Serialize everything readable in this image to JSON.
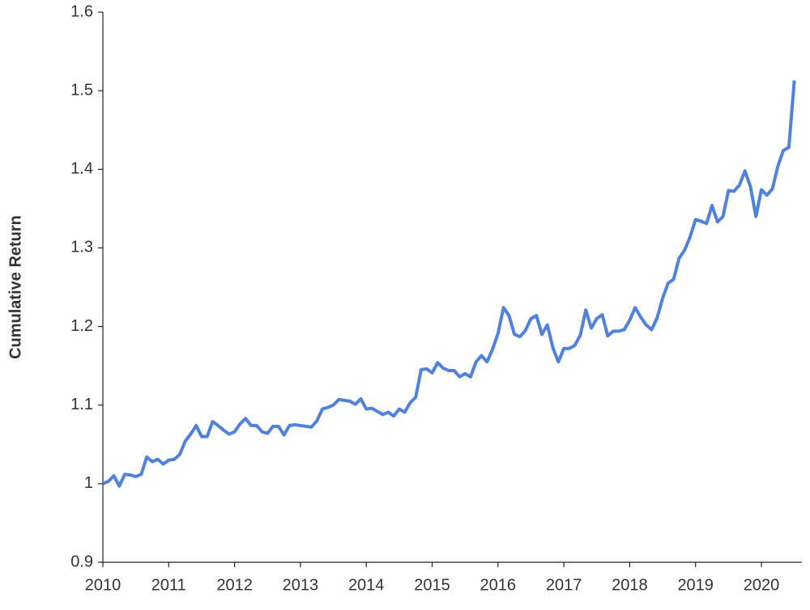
{
  "chart_data": {
    "type": "line",
    "y_label": "Cumulative Return",
    "categories": [
      "2010",
      null,
      null,
      null,
      null,
      null,
      null,
      null,
      null,
      null,
      null,
      null,
      "2011",
      null,
      null,
      null,
      null,
      null,
      null,
      null,
      null,
      null,
      null,
      null,
      "2012",
      null,
      null,
      null,
      null,
      null,
      null,
      null,
      null,
      null,
      null,
      null,
      "2013",
      null,
      null,
      null,
      null,
      null,
      null,
      null,
      null,
      null,
      null,
      null,
      "2014",
      null,
      null,
      null,
      null,
      null,
      null,
      null,
      null,
      null,
      null,
      null,
      "2015",
      null,
      null,
      null,
      null,
      null,
      null,
      null,
      null,
      null,
      null,
      null,
      "2016",
      null,
      null,
      null,
      null,
      null,
      null,
      null,
      null,
      null,
      null,
      null,
      "2017",
      null,
      null,
      null,
      null,
      null,
      null,
      null,
      null,
      null,
      null,
      null,
      "2018",
      null,
      null,
      null,
      null,
      null,
      null,
      null,
      null,
      null,
      null,
      null,
      "2019",
      null,
      null,
      null,
      null,
      null,
      null,
      null,
      null,
      null,
      null,
      null,
      "2020",
      null,
      null,
      null,
      null,
      null,
      null
    ],
    "series": [
      {
        "name": "Cumulative Return",
        "color": "#4f81dd",
        "values": [
          1.0,
          1.003,
          1.01,
          0.997,
          1.012,
          1.011,
          1.009,
          1.012,
          1.034,
          1.028,
          1.031,
          1.025,
          1.03,
          1.031,
          1.037,
          1.054,
          1.063,
          1.074,
          1.06,
          1.06,
          1.079,
          1.074,
          1.068,
          1.063,
          1.066,
          1.076,
          1.083,
          1.074,
          1.074,
          1.066,
          1.064,
          1.073,
          1.073,
          1.062,
          1.074,
          1.075,
          1.074,
          1.073,
          1.072,
          1.08,
          1.095,
          1.097,
          1.1,
          1.107,
          1.106,
          1.105,
          1.101,
          1.108,
          1.095,
          1.096,
          1.092,
          1.088,
          1.091,
          1.086,
          1.095,
          1.091,
          1.103,
          1.11,
          1.145,
          1.146,
          1.141,
          1.154,
          1.147,
          1.144,
          1.144,
          1.136,
          1.14,
          1.136,
          1.155,
          1.163,
          1.155,
          1.171,
          1.191,
          1.224,
          1.214,
          1.19,
          1.187,
          1.195,
          1.21,
          1.214,
          1.19,
          1.202,
          1.173,
          1.155,
          1.172,
          1.172,
          1.176,
          1.189,
          1.221,
          1.198,
          1.21,
          1.215,
          1.188,
          1.194,
          1.194,
          1.196,
          1.208,
          1.224,
          1.212,
          1.202,
          1.196,
          1.211,
          1.236,
          1.255,
          1.26,
          1.287,
          1.297,
          1.314,
          1.336,
          1.334,
          1.331,
          1.354,
          1.333,
          1.34,
          1.373,
          1.372,
          1.38,
          1.398,
          1.378,
          1.34,
          1.374,
          1.367,
          1.375,
          1.404,
          1.424,
          1.428,
          1.513
        ]
      }
    ],
    "ylim": [
      0.9,
      1.6
    ],
    "yticks": [
      0.9,
      1,
      1.1,
      1.2,
      1.3,
      1.4,
      1.5,
      1.6
    ],
    "grid": false
  }
}
